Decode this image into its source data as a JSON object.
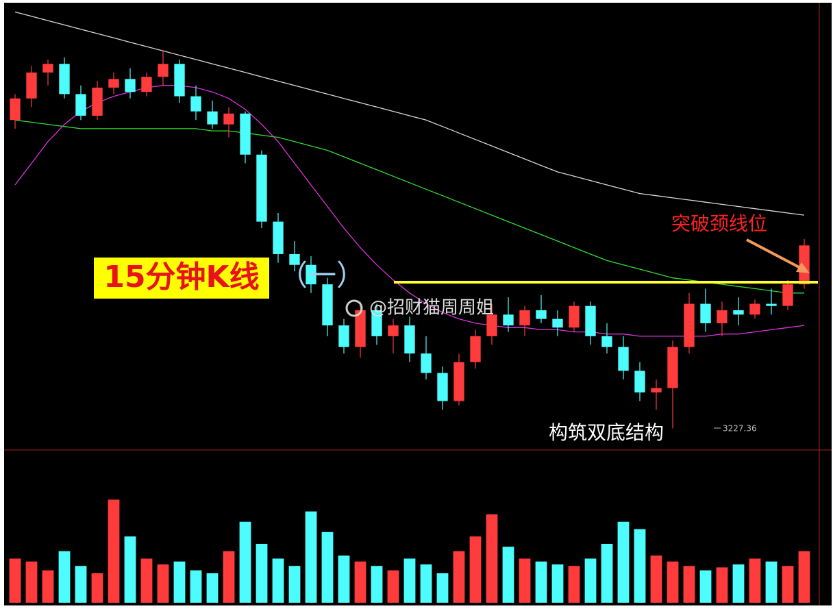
{
  "chart_data": {
    "type": "candlestick",
    "title": "15分钟K线",
    "subtitle": "（一）",
    "watermark": "@招财猫周周姐",
    "annotations": [
      "构筑双底结构",
      "突破颈线位"
    ],
    "ylim": [
      3218,
      3423
    ],
    "up_color": "#ff3b3b",
    "down_color": "#4dfcfc",
    "open": [
      3370,
      3380,
      3392,
      3396,
      3382,
      3372,
      3385,
      3389,
      3383,
      3390,
      3396,
      3381,
      3374,
      3368,
      3373,
      3354,
      3323,
      3308,
      3303,
      3294,
      3275,
      3265,
      3282,
      3270,
      3275,
      3262,
      3253,
      3240,
      3258,
      3270,
      3280,
      3275,
      3282,
      3278,
      3274,
      3284,
      3270,
      3265,
      3254,
      3244,
      3246,
      3265,
      3285,
      3276,
      3282,
      3280,
      3285,
      3284,
      3294
    ],
    "high": [
      3382,
      3395,
      3398,
      3399,
      3386,
      3388,
      3392,
      3394,
      3392,
      3402,
      3398,
      3386,
      3379,
      3376,
      3374,
      3356,
      3327,
      3314,
      3307,
      3297,
      3278,
      3286,
      3285,
      3278,
      3279,
      3270,
      3256,
      3262,
      3273,
      3285,
      3288,
      3284,
      3289,
      3282,
      3286,
      3286,
      3276,
      3270,
      3258,
      3250,
      3268,
      3290,
      3292,
      3286,
      3288,
      3287,
      3292,
      3296,
      3315
    ],
    "low": [
      3366,
      3376,
      3386,
      3380,
      3370,
      3370,
      3382,
      3380,
      3381,
      3386,
      3378,
      3370,
      3366,
      3362,
      3350,
      3320,
      3304,
      3300,
      3290,
      3270,
      3262,
      3260,
      3266,
      3262,
      3258,
      3250,
      3236,
      3238,
      3255,
      3266,
      3272,
      3270,
      3276,
      3270,
      3272,
      3266,
      3262,
      3250,
      3240,
      3236,
      3227.36,
      3262,
      3272,
      3270,
      3275,
      3278,
      3280,
      3282,
      3292
    ],
    "close": [
      3380,
      3392,
      3396,
      3382,
      3372,
      3385,
      3389,
      3383,
      3390,
      3396,
      3381,
      3374,
      3368,
      3373,
      3354,
      3323,
      3308,
      3303,
      3294,
      3275,
      3265,
      3282,
      3270,
      3275,
      3262,
      3253,
      3240,
      3258,
      3270,
      3280,
      3275,
      3282,
      3278,
      3274,
      3284,
      3270,
      3265,
      3254,
      3244,
      3246,
      3265,
      3285,
      3276,
      3282,
      3280,
      3285,
      3284,
      3294,
      3312
    ],
    "lines": [
      {
        "color": "#d8d8d8",
        "values": [
          3420,
          3418,
          3416,
          3414,
          3412,
          3410,
          3408,
          3406,
          3404,
          3402,
          3400,
          3398,
          3396,
          3394,
          3392,
          3390,
          3388,
          3386,
          3384,
          3382,
          3380,
          3378,
          3376,
          3374,
          3372,
          3370,
          3367,
          3364,
          3361,
          3358,
          3355,
          3352,
          3349,
          3346,
          3344,
          3342,
          3340,
          3338,
          3336,
          3335,
          3334,
          3333,
          3332,
          3331,
          3330,
          3329,
          3328,
          3327,
          3326
        ]
      },
      {
        "color": "#33dd33",
        "values": [
          3370,
          3369,
          3368,
          3367,
          3366,
          3366,
          3366,
          3366,
          3366,
          3366,
          3366,
          3366,
          3365,
          3365,
          3364,
          3363,
          3362,
          3360,
          3358,
          3356,
          3353,
          3350,
          3347,
          3344,
          3341,
          3338,
          3335,
          3332,
          3329,
          3326,
          3323,
          3320,
          3317,
          3314,
          3311,
          3308,
          3305,
          3303,
          3301,
          3299,
          3297,
          3296,
          3295,
          3294,
          3293,
          3292,
          3291,
          3290,
          3290
        ]
      },
      {
        "color": "#dd33dd",
        "values": [
          3340,
          3350,
          3360,
          3368,
          3374,
          3378,
          3381,
          3383,
          3385,
          3386,
          3386,
          3385,
          3383,
          3380,
          3375,
          3368,
          3360,
          3350,
          3340,
          3330,
          3320,
          3311,
          3303,
          3296,
          3290,
          3285,
          3281,
          3278,
          3276,
          3275,
          3274,
          3274,
          3273,
          3273,
          3272,
          3272,
          3271,
          3271,
          3270,
          3270,
          3270,
          3270,
          3270,
          3271,
          3271,
          3272,
          3273,
          3274,
          3275
        ]
      }
    ],
    "neckline": 3295,
    "neckline_color": "#ffff33",
    "volume": {
      "ylim": [
        0,
        100
      ],
      "values": [
        30,
        28,
        22,
        35,
        25,
        20,
        70,
        45,
        30,
        26,
        28,
        22,
        20,
        35,
        55,
        40,
        30,
        25,
        62,
        48,
        32,
        28,
        25,
        22,
        30,
        26,
        20,
        35,
        45,
        60,
        38,
        30,
        28,
        26,
        25,
        30,
        40,
        55,
        50,
        32,
        28,
        25,
        22,
        24,
        26,
        30,
        28,
        25,
        35
      ]
    }
  }
}
